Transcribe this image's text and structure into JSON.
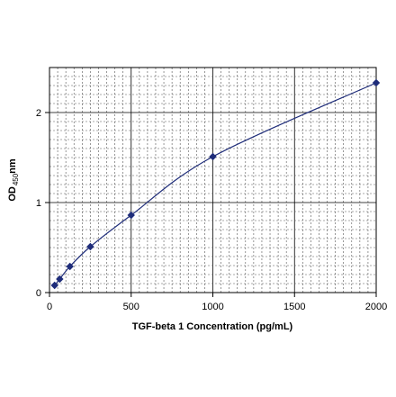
{
  "chart_data": {
    "type": "line",
    "xlabel": "TGF-beta 1 Concentration (pg/mL)",
    "ylabel": {
      "main": "OD",
      "subscript": "450",
      "suffix": "nm"
    },
    "xlim": [
      0,
      2000
    ],
    "ylim": [
      0,
      2.5
    ],
    "xticks": [
      0,
      500,
      1000,
      1500,
      2000
    ],
    "yticks": [
      0,
      1,
      2
    ],
    "grid": true,
    "legend": "none",
    "series": [
      {
        "x": [
          31.2,
          62.5,
          125,
          250,
          500,
          1000,
          2000
        ],
        "y": [
          0.08,
          0.15,
          0.29,
          0.51,
          0.86,
          1.51,
          2.33
        ],
        "color": "#1f2d7a",
        "marker": "diamond"
      }
    ]
  }
}
